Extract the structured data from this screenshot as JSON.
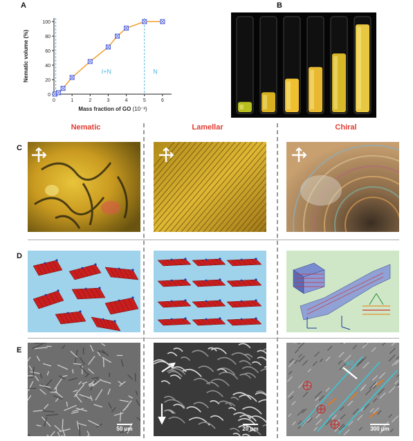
{
  "panel_labels": {
    "a": "A",
    "b": "B",
    "c": "C",
    "d": "D",
    "e": "E"
  },
  "column_titles": [
    "Nematic",
    "Lamellar",
    "Chiral"
  ],
  "chart_data": {
    "type": "line",
    "ylabel": "Nematic volume (%)",
    "xlabel": "Mass fraction of GO",
    "xlabel_unit": "(10⁻³)",
    "x_ticks": [
      "0",
      "1",
      "2",
      "3",
      "4",
      "5",
      "6"
    ],
    "y_ticks": [
      "0",
      "20",
      "40",
      "60",
      "80",
      "100"
    ],
    "xlim": [
      0,
      6.5
    ],
    "ylim": [
      0,
      105
    ],
    "x": [
      0.05,
      0.25,
      0.5,
      1.0,
      2.0,
      3.0,
      3.5,
      4.0,
      5.0,
      6.0
    ],
    "y": [
      0,
      2,
      8,
      23,
      45,
      65,
      80,
      91,
      100,
      100
    ],
    "line_color": "#f0a030",
    "marker_color": "#4a5bd8",
    "vlines": [
      0.1,
      5.0
    ],
    "vline_color": "#4fb6e0",
    "region_labels": [
      "I+N",
      "N"
    ],
    "region_label_color": "#4fb6e0"
  },
  "scale_bars": [
    "50 μm",
    "20 μm",
    "300 μm"
  ]
}
